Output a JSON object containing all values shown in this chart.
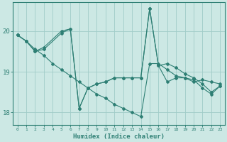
{
  "title": "",
  "xlabel": "Humidex (Indice chaleur)",
  "bg_color": "#cce8e4",
  "line_color": "#2e7f74",
  "grid_color": "#a0ccc8",
  "tick_color": "#2e7f74",
  "axis_color": "#2e7f74",
  "xlim": [
    -0.5,
    23.5
  ],
  "ylim": [
    17.7,
    20.7
  ],
  "yticks": [
    18,
    19,
    20
  ],
  "xticks": [
    0,
    1,
    2,
    3,
    4,
    5,
    6,
    7,
    8,
    9,
    10,
    11,
    12,
    13,
    14,
    15,
    16,
    17,
    18,
    19,
    20,
    21,
    22,
    23
  ],
  "lines": [
    {
      "x": [
        0,
        1,
        2,
        3,
        4,
        5,
        6,
        7,
        8,
        9,
        10,
        11,
        12,
        13,
        14,
        15,
        16,
        17,
        18,
        19,
        20,
        21,
        22,
        23
      ],
      "y": [
        19.9,
        19.75,
        19.55,
        19.4,
        19.2,
        19.05,
        18.9,
        18.75,
        18.6,
        18.45,
        18.35,
        18.2,
        18.1,
        18.0,
        17.9,
        19.2,
        19.2,
        19.05,
        18.9,
        18.85,
        18.75,
        18.8,
        18.75,
        18.7
      ]
    },
    {
      "x": [
        0,
        1,
        2,
        3,
        5,
        6,
        7,
        8,
        9,
        10,
        11,
        12,
        13,
        14,
        15,
        16,
        17,
        18,
        19,
        20,
        21,
        22,
        23
      ],
      "y": [
        19.9,
        19.75,
        19.5,
        19.6,
        20.0,
        20.05,
        18.1,
        18.6,
        18.7,
        18.75,
        18.85,
        18.85,
        18.85,
        18.85,
        20.55,
        19.15,
        18.75,
        18.85,
        18.85,
        18.8,
        18.6,
        18.45,
        18.65
      ]
    },
    {
      "x": [
        0,
        1,
        2,
        3,
        5,
        6,
        7,
        8,
        9,
        10,
        11,
        12,
        13,
        14,
        15,
        16,
        17,
        18,
        19,
        20,
        21,
        22,
        23
      ],
      "y": [
        19.9,
        19.75,
        19.5,
        19.55,
        19.95,
        20.05,
        18.1,
        18.6,
        18.7,
        18.75,
        18.85,
        18.85,
        18.85,
        18.85,
        20.55,
        19.15,
        19.2,
        19.1,
        18.95,
        18.85,
        18.7,
        18.5,
        18.65
      ]
    }
  ]
}
